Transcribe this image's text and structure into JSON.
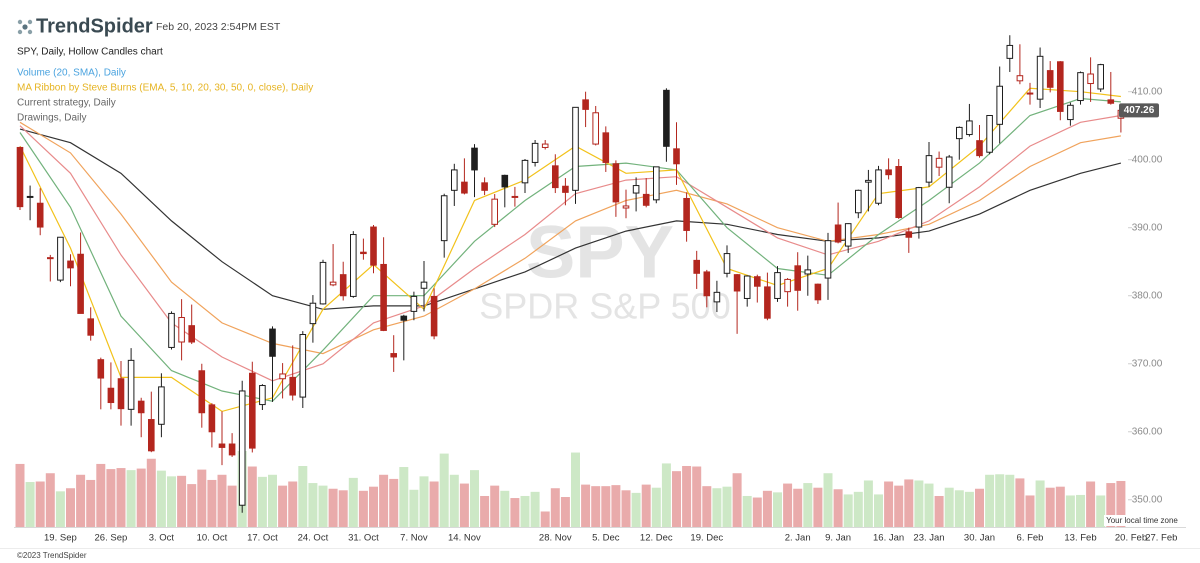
{
  "chart_data": {
    "type": "candlestick",
    "brand": "TrendSpider",
    "timestamp": "Feb 20, 2023 2:54PM EST",
    "title": "SPY, Daily, Hollow Candles chart",
    "indicators": [
      {
        "label": "Volume (20, SMA), Daily",
        "color": "#4aa3df"
      },
      {
        "label": "MA Ribbon by Steve Burns (EMA, 5, 10, 20, 30, 50, 0, close), Daily",
        "color": "#e6b422"
      },
      {
        "label": "Current strategy, Daily",
        "color": "#666666"
      },
      {
        "label": "Drawings, Daily",
        "color": "#666666"
      }
    ],
    "watermark": [
      "SPY",
      "SPDR S&P 500"
    ],
    "time_zone_note": "Your local time zone",
    "copyright": "©2023 TrendSpider",
    "categories": [
      null,
      null,
      null,
      null,
      "19. Sep",
      null,
      null,
      null,
      null,
      "26. Sep",
      null,
      null,
      null,
      null,
      "3. Oct",
      null,
      null,
      null,
      null,
      "10. Oct",
      null,
      null,
      null,
      null,
      "17. Oct",
      null,
      null,
      null,
      null,
      "24. Oct",
      null,
      null,
      null,
      null,
      "31. Oct",
      null,
      null,
      null,
      null,
      "7. Nov",
      null,
      null,
      null,
      null,
      "14. Nov",
      null,
      null,
      null,
      null,
      null,
      null,
      null,
      null,
      "28. Nov",
      null,
      null,
      null,
      null,
      "5. Dec",
      null,
      null,
      null,
      null,
      "12. Dec",
      null,
      null,
      null,
      null,
      "19. Dec",
      null,
      null,
      null,
      null,
      null,
      null,
      null,
      null,
      "2. Jan",
      null,
      null,
      null,
      "9. Jan",
      null,
      null,
      null,
      null,
      "16. Jan",
      null,
      null,
      null,
      "23. Jan",
      null,
      null,
      null,
      null,
      "30. Jan",
      null,
      null,
      null,
      null,
      "6. Feb",
      null,
      null,
      null,
      null,
      "13. Feb",
      null,
      null,
      null,
      null,
      "20. Feb",
      null,
      null,
      "27. Feb"
    ],
    "open": [
      401.8,
      394.5,
      393.6,
      385.5,
      382.3,
      385.1,
      386.1,
      376.6,
      370.6,
      366.4,
      367.8,
      363.3,
      364.5,
      361.8,
      361.1,
      372.4,
      373.2,
      375.6,
      368.97,
      363.96,
      358.2,
      358.2,
      349.2,
      368.6,
      364.0,
      375.1,
      367.8,
      368.0,
      365.1,
      375.9,
      378.8,
      381.6,
      383.1,
      379.9,
      386.4,
      390.1,
      384.6,
      371.5,
      377.0,
      377.7,
      381.1,
      379.9,
      388.1,
      395.5,
      396.7,
      401.7,
      396.6,
      390.5,
      397.7,
      394.6,
      396.6,
      399.6,
      401.8,
      399.1,
      396.1,
      395.5,
      408.8,
      402.3,
      403.95,
      399.4,
      392.9,
      395.1,
      394.9,
      394.1,
      410.2,
      401.6,
      394.3,
      385.2,
      383.5,
      379.1,
      383.3,
      383.1,
      379.6,
      382.8,
      381.3,
      379.6,
      380.6,
      384.4,
      383.2,
      381.7,
      382.6,
      390.4,
      387.3,
      392.2,
      396.7,
      393.6,
      398.5,
      399.0,
      389.4,
      390.1,
      396.7,
      398.9,
      395.95,
      403.1,
      403.7,
      402.8,
      401.1,
      405.2,
      414.9,
      411.6,
      409.8,
      408.9,
      413.1,
      414.4,
      405.9,
      408.7,
      411.2,
      410.4,
      408.8,
      406.1,
      null,
      null,
      null,
      null
    ],
    "high": [
      401.9,
      396.2,
      395.8,
      386.0,
      388.6,
      386.1,
      389.3,
      378.3,
      370.9,
      370.2,
      370.4,
      372.3,
      365.0,
      365.9,
      368.6,
      377.7,
      379.5,
      378.7,
      370.0,
      364.2,
      363.0,
      359.8,
      367.5,
      370.3,
      367.0,
      375.5,
      370.1,
      372.7,
      374.8,
      380.1,
      385.3,
      387.6,
      385.0,
      389.5,
      388.4,
      390.4,
      388.6,
      374.2,
      377.2,
      380.6,
      385.1,
      381.1,
      395.0,
      399.4,
      400.2,
      402.3,
      397.4,
      394.95,
      397.8,
      396.0,
      400.1,
      402.9,
      402.9,
      400.8,
      397.3,
      407.7,
      410.0,
      407.9,
      404.9,
      399.9,
      395.6,
      397.4,
      397.3,
      399.0,
      410.5,
      405.5,
      395.2,
      386.6,
      383.8,
      382.2,
      387.4,
      383.2,
      383.0,
      383.1,
      383.4,
      384.35,
      382.6,
      386.4,
      385.9,
      381.8,
      389.25,
      393.7,
      390.65,
      395.6,
      398.5,
      399.1,
      400.2,
      400.1,
      390.0,
      396.0,
      402.6,
      401.2,
      400.7,
      404.9,
      408.2,
      405.1,
      406.5,
      413.7,
      418.3,
      416.97,
      411.3,
      416.5,
      414.5,
      414.5,
      408.4,
      412.97,
      415.05,
      414.1,
      412.9,
      407.5,
      null,
      null,
      null,
      null
    ],
    "low": [
      392.6,
      391.1,
      388.9,
      382.1,
      382.0,
      381.4,
      377.4,
      373.4,
      363.3,
      363.3,
      360.9,
      360.9,
      359.2,
      357.0,
      359.2,
      372.1,
      370.5,
      372.9,
      360.6,
      357.7,
      355.1,
      356.3,
      348.1,
      356.96,
      363.2,
      364.4,
      364.9,
      364.6,
      363.5,
      373.1,
      378.7,
      381.4,
      379.3,
      379.7,
      385.3,
      383.3,
      374.8,
      368.8,
      370.5,
      376.4,
      377.7,
      373.6,
      385.6,
      393.2,
      394.9,
      394.5,
      394.8,
      390.1,
      393.0,
      393.1,
      395.1,
      399.0,
      401.5,
      395.1,
      393.3,
      393.5,
      404.8,
      402.1,
      398.2,
      391.6,
      391.4,
      392.4,
      393.0,
      393.6,
      399.7,
      396.3,
      387.95,
      381.0,
      378.3,
      377.6,
      382.7,
      374.4,
      378.4,
      379.0,
      376.4,
      379.1,
      378.4,
      377.8,
      380.0,
      378.8,
      379.4,
      387.7,
      386.3,
      391.4,
      392.4,
      393.3,
      397.1,
      391.3,
      386.3,
      388.4,
      396.0,
      397.6,
      393.6,
      400.0,
      403.4,
      400.3,
      400.8,
      402.4,
      412.9,
      411.1,
      408.1,
      407.6,
      409.9,
      405.8,
      405.0,
      408.1,
      408.5,
      409.97,
      408.1,
      404.0,
      null,
      null,
      null,
      null
    ],
    "close": [
      393.1,
      394.6,
      390.1,
      385.6,
      388.6,
      384.1,
      377.4,
      374.2,
      367.9,
      364.3,
      363.4,
      370.5,
      362.8,
      357.2,
      366.6,
      377.4,
      376.8,
      373.2,
      362.8,
      360.0,
      357.7,
      356.6,
      366.0,
      357.6,
      366.8,
      371.1,
      368.5,
      365.4,
      374.3,
      378.9,
      384.9,
      382.0,
      380.0,
      389.0,
      386.2,
      384.5,
      374.9,
      371.0,
      376.4,
      379.9,
      382.0,
      374.1,
      394.7,
      398.5,
      395.1,
      398.5,
      395.5,
      394.2,
      396.0,
      394.6,
      399.9,
      402.4,
      402.3,
      395.9,
      395.2,
      407.7,
      407.4,
      406.9,
      399.6,
      393.8,
      393.2,
      396.2,
      393.3,
      398.95,
      401.97,
      399.4,
      389.6,
      383.3,
      380.0,
      380.5,
      386.2,
      380.7,
      382.9,
      381.4,
      376.7,
      383.4,
      382.4,
      380.8,
      383.8,
      379.4,
      388.1,
      387.9,
      390.6,
      395.5,
      396.96,
      398.5,
      397.8,
      391.5,
      388.6,
      395.9,
      400.6,
      400.2,
      400.4,
      404.75,
      405.7,
      400.6,
      406.5,
      410.8,
      416.8,
      412.35,
      409.8,
      415.2,
      410.65,
      407.1,
      408.0,
      412.8,
      412.6,
      413.98,
      408.3,
      407.26,
      null,
      null,
      null,
      null
    ],
    "volume": [
      122,
      87,
      88,
      104,
      69,
      75,
      101,
      91,
      122,
      112,
      114,
      110,
      113,
      132,
      109,
      98,
      99,
      83,
      111,
      91,
      101,
      80,
      147,
      117,
      97,
      101,
      80,
      88,
      118,
      85,
      80,
      74,
      71,
      95,
      70,
      78,
      101,
      93,
      116,
      72,
      98,
      88,
      142,
      101,
      84,
      110,
      60,
      80,
      70,
      56,
      60,
      68,
      30,
      75,
      58,
      144,
      82,
      79,
      79,
      81,
      71,
      66,
      82,
      76,
      123,
      108,
      118,
      117,
      79,
      75,
      78,
      104,
      60,
      57,
      70,
      67,
      84,
      74,
      85,
      76,
      104,
      73,
      63,
      68,
      90,
      63,
      88,
      80,
      92,
      90,
      84,
      60,
      76,
      71,
      68,
      74,
      101,
      102,
      101,
      94,
      61,
      90,
      76,
      78,
      61,
      62,
      88,
      61,
      85,
      89,
      null,
      null,
      null,
      null
    ],
    "colors": {
      "up": "#1e1e1e",
      "down": "#b3261e",
      "volume_up": "#cde8c6",
      "volume_down": "#e9abab",
      "last_price": "#595959"
    },
    "series": [
      {
        "color": "#333333",
        "x": [
          0,
          5,
          10,
          15,
          20,
          25,
          30,
          35,
          40,
          45,
          50,
          55,
          60,
          65,
          70,
          75,
          80,
          85,
          90,
          95,
          100,
          105,
          109
        ],
        "values": [
          404.5,
          402.5,
          398,
          391,
          385,
          380,
          378,
          378.5,
          378.5,
          381,
          383.5,
          387,
          389.5,
          391,
          390.5,
          389,
          388,
          388.5,
          389.5,
          392,
          395.5,
          398,
          399.5
        ]
      },
      {
        "color": "#f0a35c",
        "x": [
          0,
          5,
          10,
          15,
          20,
          25,
          30,
          35,
          40,
          45,
          50,
          55,
          60,
          65,
          70,
          75,
          80,
          85,
          90,
          95,
          100,
          105,
          109
        ],
        "values": [
          405.5,
          401,
          392,
          382,
          376,
          373,
          371.5,
          375,
          377,
          381,
          385.5,
          391,
          394,
          395.5,
          393.5,
          390,
          388,
          389,
          390.5,
          394,
          399,
          402.5,
          403.5
        ]
      },
      {
        "color": "#e88b8b",
        "x": [
          0,
          5,
          10,
          15,
          20,
          25,
          30,
          35,
          40,
          45,
          50,
          55,
          60,
          65,
          70,
          75,
          80,
          85,
          90,
          95,
          100,
          105,
          109
        ],
        "values": [
          405,
          398,
          386,
          376,
          371,
          367.5,
          370,
          376,
          378.5,
          384,
          389,
          395,
          397,
          397.5,
          393,
          388.5,
          386,
          388,
          391,
          396,
          402,
          405.5,
          406.5
        ]
      },
      {
        "color": "#72b27c",
        "x": [
          0,
          5,
          10,
          15,
          20,
          25,
          30,
          35,
          40,
          45,
          50,
          55,
          60,
          65,
          70,
          75,
          80,
          85,
          90,
          95,
          100,
          105,
          109
        ],
        "values": [
          404,
          393,
          377,
          369,
          366,
          364.5,
          372,
          380,
          380,
          388,
          394,
          399,
          399.5,
          398.5,
          390,
          384,
          383,
          389,
          394,
          399.5,
          406.5,
          409,
          408.5
        ]
      },
      {
        "color": "#f2c21b",
        "x": [
          0,
          5,
          10,
          15,
          20,
          25,
          30,
          35,
          40,
          45,
          50,
          55,
          60,
          65,
          70,
          75,
          80,
          85,
          90,
          95,
          100,
          105,
          109
        ],
        "values": [
          402,
          387,
          368,
          368,
          363,
          365,
          378,
          384.6,
          378,
          394,
          397,
          402,
          398,
          398.5,
          384,
          381.5,
          384,
          395,
          396,
          402,
          410.5,
          410,
          409.3
        ]
      }
    ],
    "ylim": [
      346,
      417.6
    ],
    "yticks": [
      {
        "value": 350,
        "label": "350.00"
      },
      {
        "value": 360,
        "label": "360.00"
      },
      {
        "value": 370,
        "label": "370.00"
      },
      {
        "value": 380,
        "label": "380.00"
      },
      {
        "value": 390,
        "label": "390.00"
      },
      {
        "value": 400,
        "label": "400.00"
      },
      {
        "value": 410,
        "label": "410.00"
      }
    ]
  }
}
